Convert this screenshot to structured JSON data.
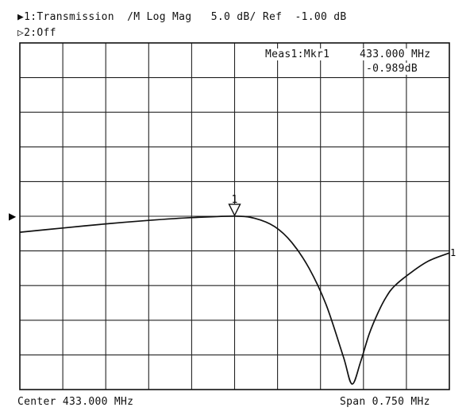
{
  "header": {
    "channel1": "▶1:Transmission  /M Log Mag   5.0 dB/ Ref  -1.00 dB",
    "channel2": "▷2:Off"
  },
  "marker_readout": {
    "label": "Meas1:Mkr1",
    "frequency": "433.000 MHz",
    "value": "-0.989dB"
  },
  "footer": {
    "center": "Center 433.000 MHz",
    "span": "Span 0.750 MHz"
  },
  "colors": {
    "trace": "#111111",
    "grid": "#222222",
    "background": "#ffffff"
  },
  "chart_data": {
    "type": "line",
    "title": "",
    "xlabel": "",
    "ylabel": "",
    "x_unit": "MHz",
    "y_unit": "dB",
    "x_center": 433.0,
    "x_span": 0.75,
    "xlim": [
      432.625,
      433.375
    ],
    "y_ref": -1.0,
    "y_scale_per_div": 5.0,
    "ylim": [
      -26.0,
      24.0
    ],
    "ref_marker_label": "▶",
    "trace_end_label": "1",
    "series": [
      {
        "x": [
          432.625,
          432.7,
          432.775,
          432.85,
          432.925,
          433.0,
          433.035,
          433.07,
          433.1,
          433.13,
          433.16,
          433.19,
          433.205,
          433.22,
          433.235,
          433.25,
          433.265,
          433.28,
          433.31,
          433.34,
          433.375
        ],
        "y": [
          -3.3,
          -2.7,
          -2.1,
          -1.6,
          -1.2,
          -0.99,
          -1.3,
          -2.5,
          -4.8,
          -8.5,
          -13.8,
          -21.3,
          -25.2,
          -22.0,
          -18.0,
          -15.0,
          -12.6,
          -11.0,
          -9.0,
          -7.4,
          -6.3
        ]
      }
    ],
    "marker": {
      "label": "1",
      "x": 433.0,
      "y": -0.989
    },
    "grid": true
  }
}
